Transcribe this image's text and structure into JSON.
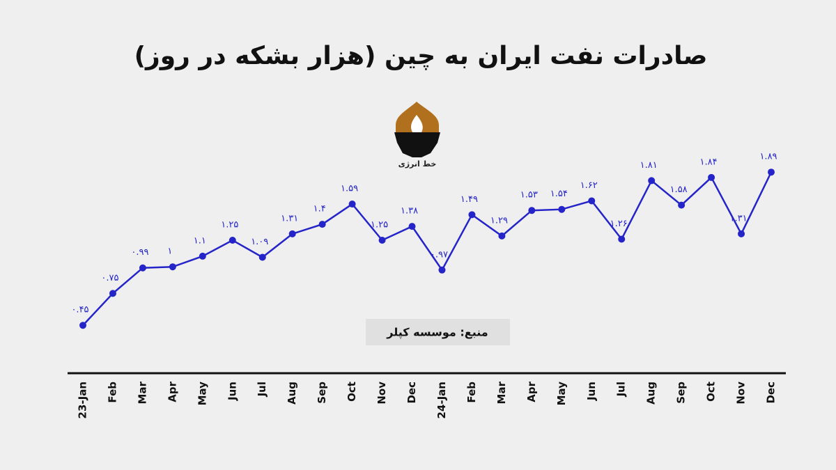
{
  "chart_data": {
    "type": "line",
    "title": "صادرات نفت ایران به چین (هزار بشکه در روز)",
    "source": "منبع: موسسه کپلر",
    "logo_text": "خط انرژی",
    "categories": [
      "23-Jan",
      "Feb",
      "Mar",
      "Apr",
      "May",
      "Jun",
      "Jul",
      "Aug",
      "Sep",
      "Oct",
      "Nov",
      "Dec",
      "24-Jan",
      "Feb",
      "Mar",
      "Apr",
      "May",
      "Jun",
      "Jul",
      "Aug",
      "Sep",
      "Oct",
      "Nov",
      "Dec"
    ],
    "values": [
      0.45,
      0.75,
      0.99,
      1,
      1.1,
      1.25,
      1.09,
      1.31,
      1.4,
      1.59,
      1.25,
      1.38,
      0.97,
      1.49,
      1.29,
      1.53,
      1.54,
      1.62,
      1.26,
      1.81,
      1.58,
      1.84,
      1.31,
      1.89
    ],
    "value_labels": [
      "۰.۴۵",
      "۰.۷۵",
      "۰.۹۹",
      "۱",
      "۱.۱",
      "۱.۲۵",
      "۱.۰۹",
      "۱.۳۱",
      "۱.۴",
      "۱.۵۹",
      "۱.۲۵",
      "۱.۳۸",
      "۰.۹۷",
      "۱.۴۹",
      "۱.۲۹",
      "۱.۵۳",
      "۱.۵۴",
      "۱.۶۲",
      "۱.۲۶",
      "۱.۸۱",
      "۱.۵۸",
      "۱.۸۴",
      "۱.۳۱",
      "۱.۸۹"
    ],
    "color": "#2424c8",
    "ylim": [
      0,
      2
    ]
  }
}
